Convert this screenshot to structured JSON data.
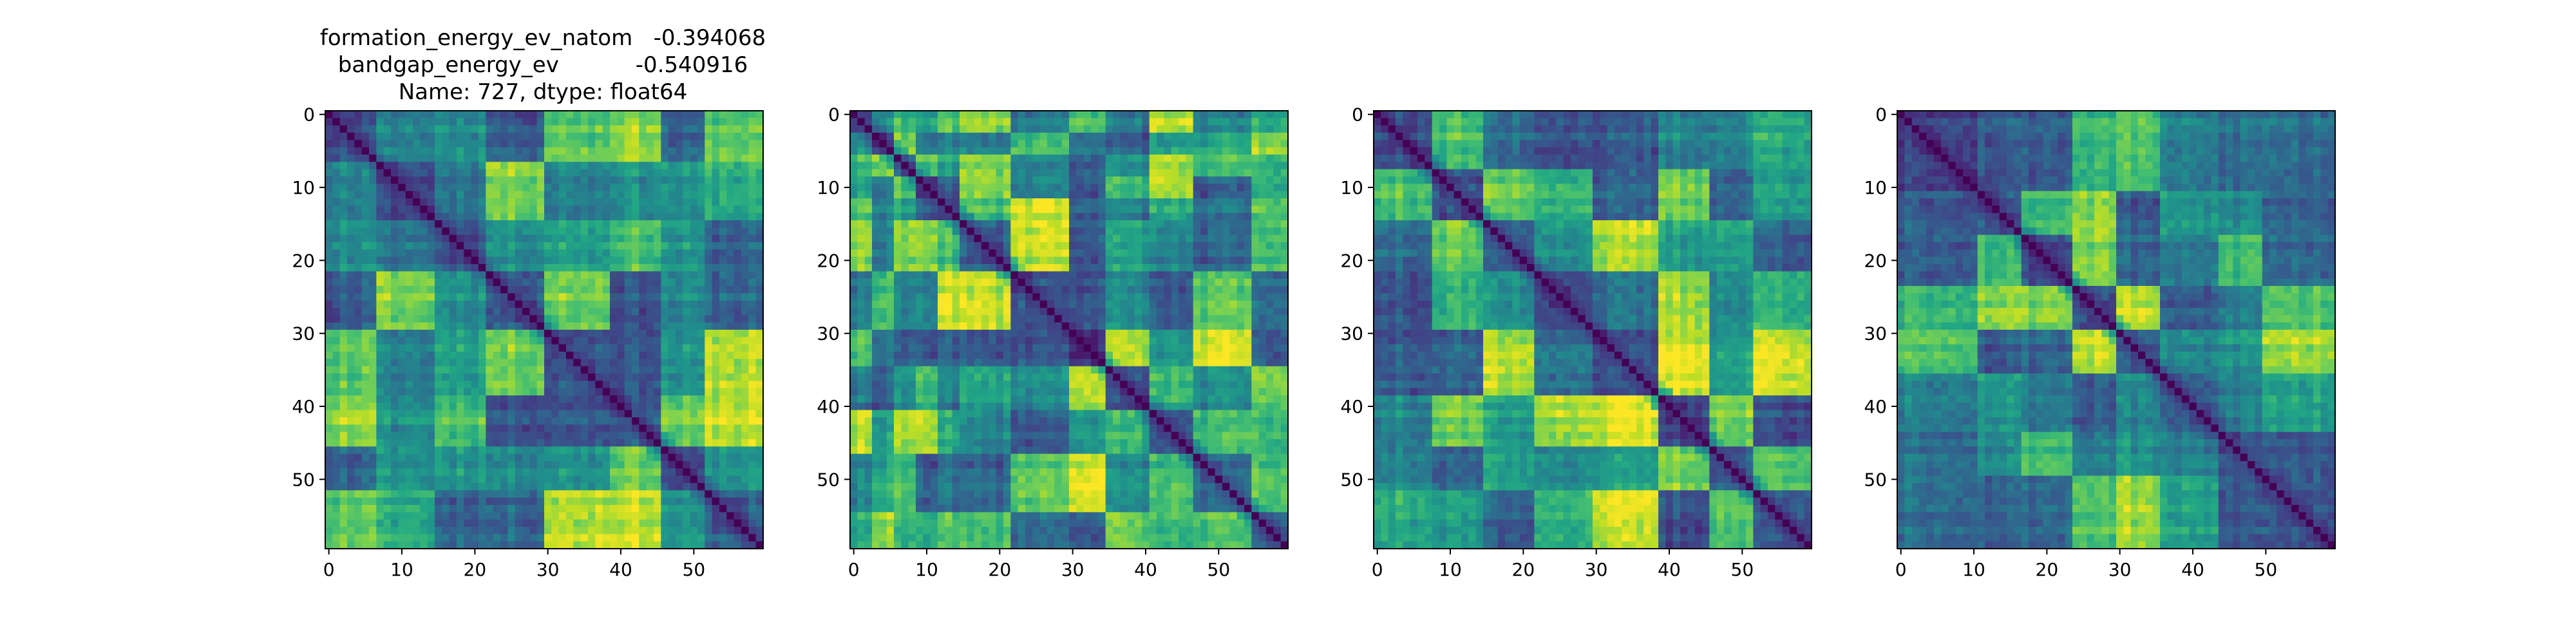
{
  "chart_data": [
    {
      "type": "heatmap",
      "title_lines": [
        "formation_energy_ev_natom   -0.394068",
        "bandgap_energy_ev           -0.540916",
        "Name: 727, dtype: float64"
      ],
      "size": 60,
      "blocks": [
        0,
        7,
        15,
        22,
        30,
        39,
        46,
        52,
        60
      ],
      "seed": 11,
      "xticks": [
        0,
        10,
        20,
        30,
        40,
        50
      ],
      "yticks": [
        0,
        10,
        20,
        30,
        40,
        50
      ],
      "colormap": "viridis"
    },
    {
      "type": "heatmap",
      "title_lines": [],
      "size": 60,
      "blocks": [
        0,
        3,
        6,
        9,
        12,
        15,
        22,
        30,
        35,
        41,
        47,
        55,
        60
      ],
      "seed": 23,
      "xticks": [
        0,
        10,
        20,
        30,
        40,
        50
      ],
      "yticks": [
        0,
        10,
        20,
        30,
        40,
        50
      ],
      "colormap": "viridis"
    },
    {
      "type": "heatmap",
      "title_lines": [],
      "size": 60,
      "blocks": [
        0,
        8,
        15,
        22,
        30,
        39,
        46,
        52,
        60
      ],
      "seed": 37,
      "xticks": [
        0,
        10,
        20,
        30,
        40,
        50
      ],
      "yticks": [
        0,
        10,
        20,
        30,
        40,
        50
      ],
      "colormap": "viridis"
    },
    {
      "type": "heatmap",
      "title_lines": [],
      "size": 60,
      "blocks": [
        0,
        11,
        17,
        24,
        30,
        36,
        44,
        50,
        60
      ],
      "seed": 53,
      "xticks": [
        0,
        10,
        20,
        30,
        40,
        50
      ],
      "yticks": [
        0,
        10,
        20,
        30,
        40,
        50
      ],
      "colormap": "viridis"
    }
  ]
}
